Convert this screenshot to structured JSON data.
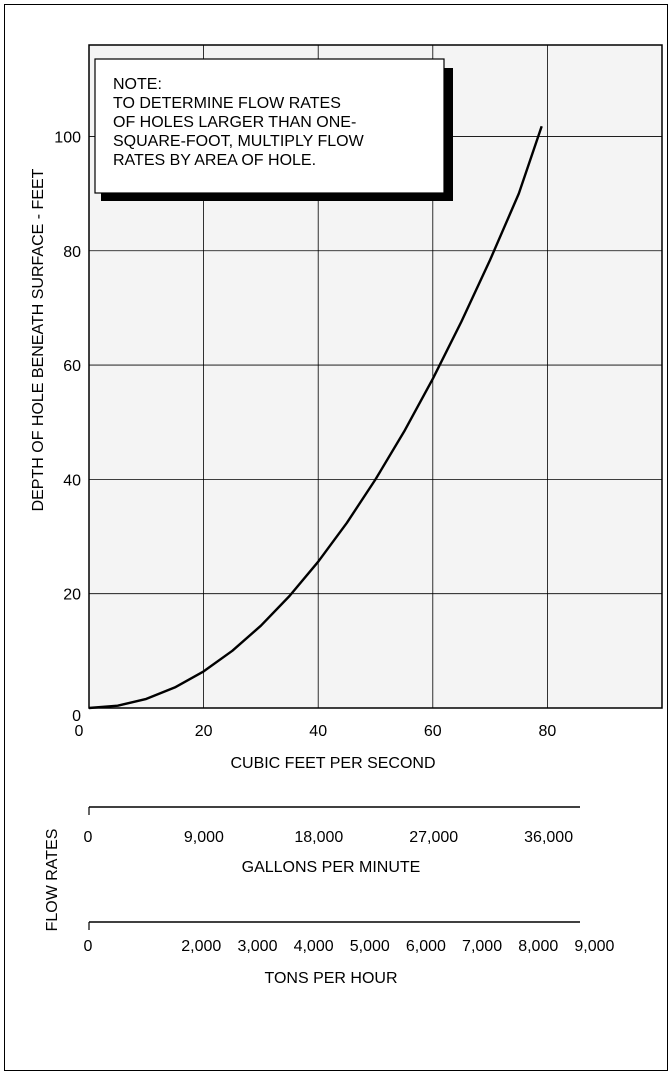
{
  "chart_data": {
    "type": "line",
    "title": "",
    "xlabel": "CUBIC FEET PER SECOND",
    "ylabel": "DEPTH OF HOLE BENEATH SURFACE - FEET",
    "xlim": [
      0,
      100
    ],
    "ylim": [
      0,
      116
    ],
    "x_ticks": [
      0,
      20,
      40,
      60,
      80
    ],
    "x_tick_labels": [
      "0",
      "20",
      "40",
      "60",
      "80"
    ],
    "y_ticks": [
      0,
      20,
      40,
      60,
      80,
      100
    ],
    "y_tick_labels": [
      "0",
      "20",
      "40",
      "60",
      "80",
      "100"
    ],
    "grid": true,
    "series": [
      {
        "x": [
          0,
          5,
          10,
          15,
          20,
          25,
          30,
          35,
          40,
          45,
          50,
          55,
          60,
          65,
          70,
          75,
          79
        ],
        "y": [
          0,
          0.4,
          1.6,
          3.6,
          6.4,
          10,
          14.4,
          19.6,
          25.6,
          32.4,
          40,
          48.4,
          57.6,
          67.6,
          78.4,
          90,
          101.8
        ]
      }
    ],
    "note": {
      "lines": [
        "NOTE:",
        "TO DETERMINE FLOW RATES",
        "OF HOLES LARGER THAN ONE-",
        "SQUARE-FOOT, MULTIPLY FLOW",
        "RATES BY AREA OF HOLE."
      ]
    },
    "flow_rates_label": "FLOW RATES",
    "secondary_scales": [
      {
        "name": "gallons-per-minute",
        "title": "GALLONS PER MINUTE",
        "ticks": [
          0,
          9000,
          18000,
          27000,
          36000
        ],
        "tick_labels": [
          "0",
          "9,000",
          "18,000",
          "27,000",
          "36,000"
        ],
        "cfs_per_unit": 0.0022282
      },
      {
        "name": "tons-per-hour",
        "title": "TONS PER HOUR",
        "ticks": [
          0,
          2000,
          3000,
          4000,
          5000,
          6000,
          7000,
          8000,
          9000
        ],
        "tick_labels": [
          "0",
          "2,000",
          "3,000",
          "4,000",
          "5,000",
          "6,000",
          "7,000",
          "8,000",
          "9,000"
        ],
        "cfs_per_unit": 0.0098
      }
    ]
  }
}
